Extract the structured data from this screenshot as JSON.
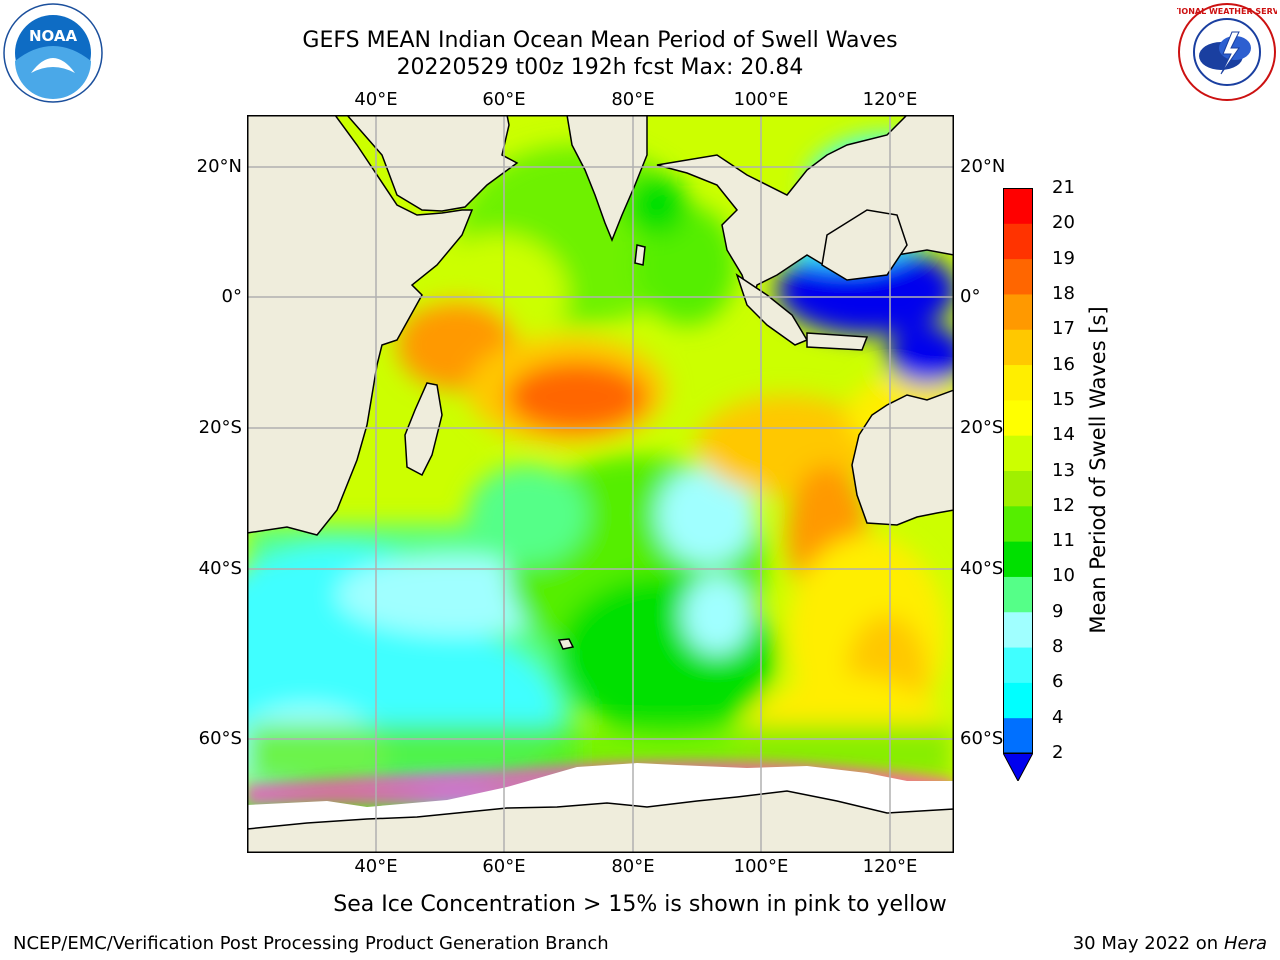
{
  "header": {
    "title_line1": "GEFS MEAN Indian Ocean Mean Period of Swell Waves",
    "title_line2": "20220529 t00z 192h fcst   Max: 20.84"
  },
  "logos": {
    "left": "NOAA",
    "right": "NATIONAL WEATHER SERVICE"
  },
  "map": {
    "lon_ticks": [
      "40°E",
      "60°E",
      "80°E",
      "100°E",
      "120°E"
    ],
    "lat_ticks": [
      "20°N",
      "0°",
      "20°S",
      "40°S",
      "60°S"
    ],
    "extent": {
      "lon": [
        20,
        130
      ],
      "lat": [
        -73,
        27
      ]
    },
    "ocean_default": "#ccff00",
    "land_color": "#efeddc",
    "grid_color": "#b0b0b0",
    "ice_color": "#ffffff"
  },
  "colorbar": {
    "title": "Mean Period of Swell Waves [s]",
    "labels": [
      "2",
      "4",
      "6",
      "8",
      "9",
      "10",
      "11",
      "12",
      "13",
      "14",
      "15",
      "16",
      "17",
      "18",
      "19",
      "20",
      "21"
    ],
    "colors": [
      "#0070ff",
      "#00ccff",
      "#00ffff",
      "#40ffff",
      "#a0ffff",
      "#55ff88",
      "#00e000",
      "#55ee00",
      "#a0f000",
      "#ccff00",
      "#ffff00",
      "#ffee00",
      "#ffc800",
      "#ff9900",
      "#ff6600",
      "#ff3300",
      "#ff0000"
    ],
    "extend_min_color": "#0000ee"
  },
  "caption": "Sea Ice Concentration > 15% is shown in pink to yellow",
  "footer": {
    "left": "NCEP/EMC/Verification Post Processing Product Generation Branch",
    "right_date": "30 May 2022 on",
    "right_host": "Hera"
  }
}
